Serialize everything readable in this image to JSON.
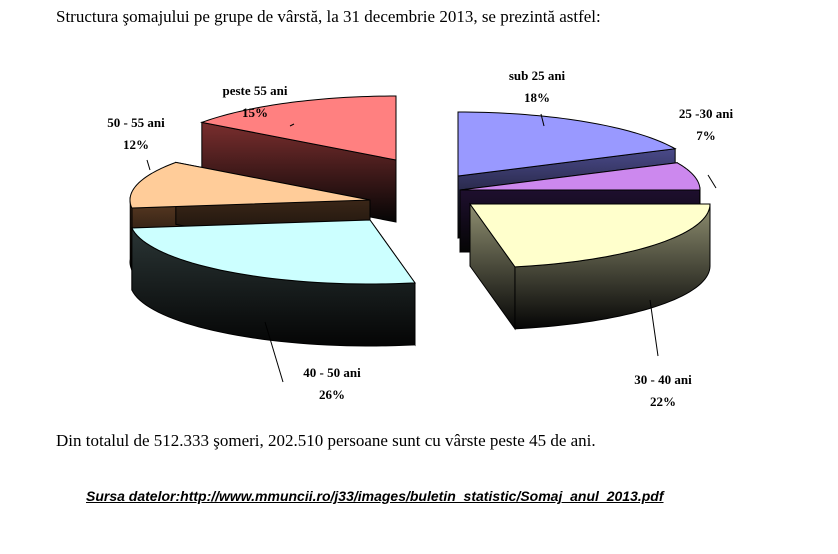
{
  "text": {
    "intro": "Structura şomajului pe grupe de vârstă, la 31 decembrie 2013, se prezintă astfel:",
    "summary": "Din totalul de 512.333 şomeri, 202.510 persoane sunt cu vârste peste 45 de ani.",
    "source": "Sursa datelor:http://www.mmuncii.ro/j33/images/buletin_statistic/Somaj_anul_2013.pdf"
  },
  "chart_data": {
    "type": "pie",
    "style": "3d-exploded",
    "unit": "%",
    "slices": [
      {
        "label": "sub 25 ani",
        "value": 18,
        "color_top": "#9999FF",
        "color_side": "#4a4a8a"
      },
      {
        "label": "25 -30 ani",
        "value": 7,
        "color_top": "#cc88ee",
        "color_side": "#1e0f2e"
      },
      {
        "label": "30 - 40 ani",
        "value": 22,
        "color_top": "#FFFFCC",
        "color_side": "#8e8e70"
      },
      {
        "label": "40 - 50 ani",
        "value": 26,
        "color_top": "#CCFFFF",
        "color_side": "#2a3535"
      },
      {
        "label": "50 - 55 ani",
        "value": 12,
        "color_top": "#FFCC99",
        "color_side": "#5a3a22"
      },
      {
        "label": "peste 55 ani",
        "value": 15,
        "color_top": "#FF8080",
        "color_side": "#7a2e2e"
      }
    ]
  }
}
